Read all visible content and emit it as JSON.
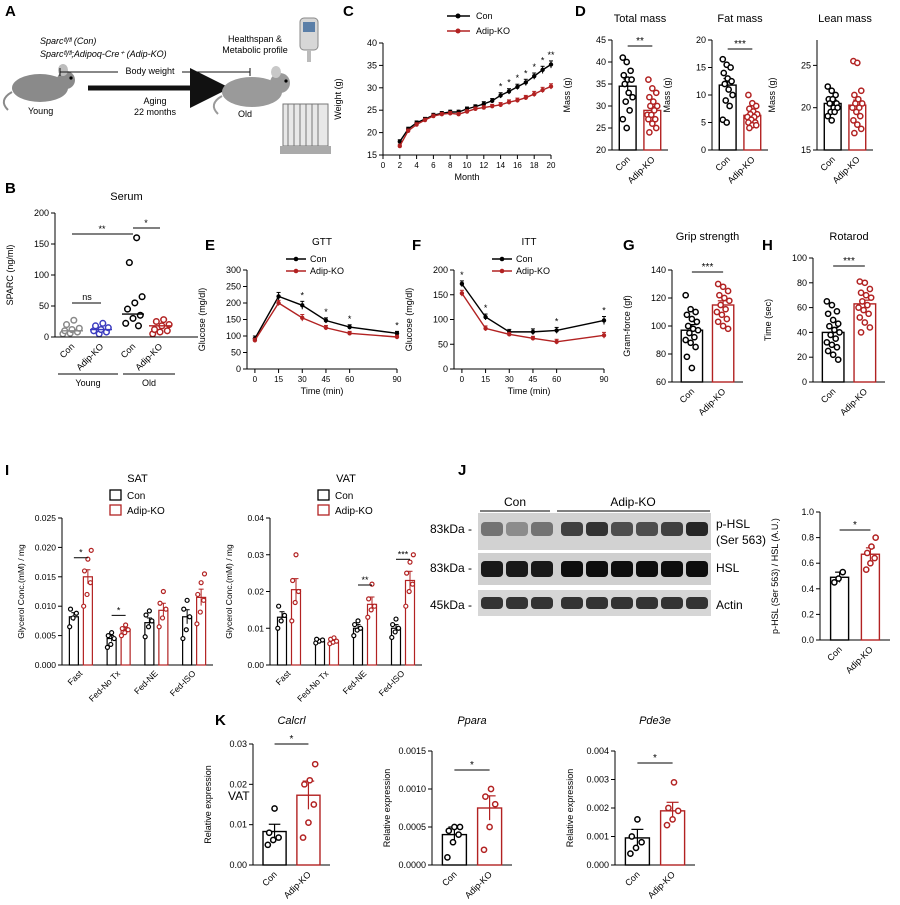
{
  "colors": {
    "con": "#000000",
    "ko": "#b22222",
    "ko_fill": "#c0392b"
  },
  "panel_letters": [
    "A",
    "B",
    "C",
    "D",
    "E",
    "F",
    "G",
    "H",
    "I",
    "J",
    "K"
  ],
  "schematic": {
    "legend_con": "Sparcᶠˡ/ᶠˡ (Con)",
    "legend_ko": "Sparcᶠˡ/ᶠˡ;Adipoq-Cre⁺ (Adip-KO)",
    "body_weight": "Body weight",
    "young": "Young",
    "aging": "Aging",
    "aging_months": "22 months",
    "old": "Old",
    "healthspan": "Healthspan &",
    "metabolic": "Metabolic profile"
  },
  "chart_data": [
    {
      "id": "C",
      "type": "line",
      "title": "",
      "xlabel": "Month",
      "ylabel": "Weight (g)",
      "xlim": [
        0,
        20
      ],
      "ylim": [
        15,
        40
      ],
      "xticks": [
        0,
        2,
        4,
        6,
        8,
        10,
        12,
        14,
        16,
        18,
        20
      ],
      "yticks": [
        15,
        20,
        25,
        30,
        35,
        40
      ],
      "x": [
        2,
        3,
        4,
        5,
        6,
        7,
        8,
        9,
        10,
        11,
        12,
        13,
        14,
        15,
        16,
        17,
        18,
        19,
        20
      ],
      "series": [
        {
          "name": "Con",
          "values": [
            18,
            20.8,
            22.2,
            23,
            23.9,
            24.3,
            24.6,
            24.6,
            25.3,
            25.8,
            26.4,
            27.1,
            28.3,
            29.2,
            30.2,
            31.2,
            32.6,
            34,
            35.2
          ],
          "errors": [
            0.4,
            0.4,
            0.4,
            0.4,
            0.4,
            0.4,
            0.4,
            0.4,
            0.4,
            0.4,
            0.5,
            0.5,
            0.6,
            0.6,
            0.6,
            0.7,
            0.7,
            0.8,
            0.8
          ]
        },
        {
          "name": "Adip-KO",
          "values": [
            17,
            20.4,
            21.8,
            22.8,
            23.7,
            24.1,
            24.3,
            24.1,
            24.7,
            25.3,
            25.6,
            25.9,
            26.2,
            26.8,
            27.2,
            27.8,
            28.6,
            29.5,
            30.3
          ],
          "errors": [
            0.4,
            0.4,
            0.4,
            0.4,
            0.4,
            0.4,
            0.4,
            0.4,
            0.4,
            0.4,
            0.4,
            0.4,
            0.5,
            0.5,
            0.5,
            0.5,
            0.6,
            0.6,
            0.6
          ]
        }
      ],
      "sig": [
        [
          "*",
          14
        ],
        [
          "*",
          15
        ],
        [
          "*",
          16
        ],
        [
          "*",
          17
        ],
        [
          "*",
          18
        ],
        [
          "*",
          19
        ],
        [
          "**",
          20
        ]
      ]
    },
    {
      "id": "D1",
      "type": "bar",
      "title": "Total mass",
      "ylabel": "Mass (g)",
      "ylim": [
        20,
        45
      ],
      "yticks": [
        20,
        25,
        30,
        35,
        40,
        45
      ],
      "categories": [
        "Con",
        "Adip-KO"
      ],
      "values": [
        34.5,
        29
      ],
      "errors": [
        1.6,
        0.9
      ],
      "points": [
        [
          41,
          40,
          38,
          37,
          36,
          36,
          35,
          33,
          32,
          31,
          29,
          27,
          25
        ],
        [
          36,
          34,
          33,
          32,
          31,
          30,
          30,
          29,
          28,
          28,
          27,
          27,
          26,
          25,
          24
        ]
      ],
      "sig": {
        "text": "**"
      }
    },
    {
      "id": "D2",
      "type": "bar",
      "title": "Fat mass",
      "ylabel": "Mass (g)",
      "ylim": [
        0,
        20
      ],
      "yticks": [
        0,
        5,
        10,
        15,
        20
      ],
      "categories": [
        "Con",
        "Adip-KO"
      ],
      "values": [
        11.8,
        6.3
      ],
      "errors": [
        1.2,
        0.5
      ],
      "points": [
        [
          16.5,
          15.5,
          15,
          14,
          13,
          12.5,
          12,
          11,
          10,
          9,
          8,
          5.5,
          5
        ],
        [
          10,
          8.5,
          8,
          7.5,
          7,
          6.5,
          6.5,
          6,
          6,
          5.5,
          5,
          5,
          4.5,
          4.5,
          4
        ]
      ],
      "sig": {
        "text": "***"
      }
    },
    {
      "id": "D3",
      "type": "bar",
      "title": "Lean mass",
      "ylabel": "Mass (g)",
      "ylim": [
        15,
        28
      ],
      "yticks": [
        15,
        20,
        25
      ],
      "categories": [
        "Con",
        "Adip-KO"
      ],
      "values": [
        20.5,
        20.3
      ],
      "errors": [
        0.4,
        0.6
      ],
      "points": [
        [
          22.5,
          22,
          21.5,
          21,
          21,
          20.5,
          20.5,
          20,
          20,
          19.5,
          19.5,
          19,
          18.5
        ],
        [
          25.5,
          25.3,
          22,
          21.5,
          21,
          20.5,
          20.5,
          20,
          20,
          19.5,
          19,
          18.5,
          18,
          17.5,
          17
        ]
      ]
    },
    {
      "id": "B",
      "type": "scatter",
      "title": "Serum",
      "ylabel": "SPARC (ng/ml)",
      "ylim": [
        0,
        200
      ],
      "yticks": [
        0,
        50,
        100,
        150,
        200
      ],
      "categories": [
        "Con",
        "Adip-KO",
        "Con",
        "Adip-KO"
      ],
      "group_labels": [
        "Young",
        "Old"
      ],
      "medians": [
        10,
        12,
        37,
        18
      ],
      "points": [
        [
          5,
          6,
          8,
          10,
          12,
          14,
          20,
          27
        ],
        [
          5,
          8,
          10,
          12,
          15,
          18,
          22
        ],
        [
          18,
          22,
          30,
          35,
          45,
          55,
          65,
          120,
          160
        ],
        [
          5,
          8,
          10,
          12,
          18,
          20,
          25,
          28
        ]
      ],
      "sig": [
        {
          "text": "ns"
        },
        {
          "text": "**"
        },
        {
          "text": "*"
        }
      ]
    },
    {
      "id": "E",
      "type": "line",
      "title": "GTT",
      "xlabel": "Time (min)",
      "ylabel": "Glucose (mg/dl)",
      "ylim": [
        0,
        300
      ],
      "yticks": [
        0,
        50,
        100,
        150,
        200,
        250,
        300
      ],
      "x": [
        0,
        15,
        30,
        45,
        60,
        90
      ],
      "series": [
        {
          "name": "Con",
          "values": [
            92,
            220,
            193,
            147,
            127,
            108
          ],
          "errors": [
            8,
            12,
            12,
            8,
            7,
            6
          ]
        },
        {
          "name": "Adip-KO",
          "values": [
            87,
            200,
            155,
            125,
            108,
            97
          ],
          "errors": [
            6,
            8,
            10,
            7,
            6,
            5
          ]
        }
      ],
      "sig": [
        [
          "*",
          30
        ],
        [
          "*",
          45
        ],
        [
          "*",
          60
        ],
        [
          "*",
          90
        ]
      ]
    },
    {
      "id": "F",
      "type": "line",
      "title": "ITT",
      "xlabel": "Time (min)",
      "ylabel": "Glucose (mg/dl)",
      "ylim": [
        0,
        200
      ],
      "yticks": [
        0,
        50,
        100,
        150,
        200
      ],
      "x": [
        0,
        15,
        30,
        45,
        60,
        90
      ],
      "series": [
        {
          "name": "Con",
          "values": [
            172,
            105,
            75,
            75,
            78,
            98
          ],
          "errors": [
            6,
            6,
            5,
            6,
            6,
            8
          ]
        },
        {
          "name": "Adip-KO",
          "values": [
            153,
            82,
            70,
            62,
            55,
            68
          ],
          "errors": [
            6,
            5,
            4,
            4,
            5,
            6
          ]
        }
      ],
      "sig": [
        [
          "*",
          0
        ],
        [
          "*",
          15
        ],
        [
          "*",
          60
        ],
        [
          "*",
          90
        ]
      ]
    },
    {
      "id": "G",
      "type": "bar",
      "title": "Grip strength",
      "ylabel": "Gram-force (gf)",
      "ylim": [
        60,
        140
      ],
      "yticks": [
        60,
        80,
        100,
        120,
        140
      ],
      "categories": [
        "Con",
        "Adip-KO"
      ],
      "values": [
        97,
        115
      ],
      "errors": [
        4,
        3
      ],
      "points": [
        [
          122,
          112,
          110,
          108,
          105,
          103,
          100,
          98,
          97,
          95,
          92,
          90,
          88,
          85,
          78,
          70
        ],
        [
          130,
          128,
          125,
          122,
          120,
          118,
          115,
          112,
          110,
          108,
          105,
          103,
          100,
          98
        ]
      ],
      "sig": {
        "text": "***"
      }
    },
    {
      "id": "H",
      "type": "bar",
      "title": "Rotarod",
      "ylabel": "Time (sec)",
      "ylim": [
        0,
        100
      ],
      "yticks": [
        0,
        20,
        40,
        60,
        80,
        100
      ],
      "categories": [
        "Con",
        "Adip-KO"
      ],
      "values": [
        40,
        63
      ],
      "errors": [
        4,
        3
      ],
      "points": [
        [
          65,
          62,
          57,
          55,
          50,
          47,
          45,
          42,
          40,
          38,
          35,
          32,
          30,
          28,
          25,
          22,
          18
        ],
        [
          81,
          80,
          75,
          72,
          70,
          68,
          65,
          62,
          60,
          58,
          55,
          52,
          48,
          44,
          40
        ]
      ],
      "sig": {
        "text": "***"
      }
    },
    {
      "id": "I1",
      "type": "bar",
      "title": "SAT",
      "ylabel": "Glycerol Conc.(mM) / mg",
      "ylim": [
        0,
        0.025
      ],
      "yticks": [
        0,
        0.005,
        0.01,
        0.015,
        0.02,
        0.025
      ],
      "ytick_labels": [
        "0.000",
        "0.005",
        "0.010",
        "0.015",
        "0.020",
        "0.025"
      ],
      "categories": [
        "Fast",
        "Fed-No Tx",
        "Fed-NE",
        "Fed-ISO"
      ],
      "series": [
        {
          "name": "Con",
          "values": [
            0.0082,
            0.0045,
            0.0072,
            0.0082
          ],
          "errors": [
            0.0007,
            0.0005,
            0.0008,
            0.0012
          ]
        },
        {
          "name": "Adip-KO",
          "values": [
            0.015,
            0.006,
            0.0093,
            0.0115
          ],
          "errors": [
            0.0012,
            0.0004,
            0.0012,
            0.0014
          ]
        }
      ],
      "points_con": [
        [
          0.0065,
          0.008,
          0.0088,
          0.0095
        ],
        [
          0.003,
          0.0035,
          0.0045,
          0.005,
          0.0055
        ],
        [
          0.0048,
          0.0065,
          0.0075,
          0.0085,
          0.0092
        ],
        [
          0.0045,
          0.006,
          0.0082,
          0.0095,
          0.011
        ]
      ],
      "points_ko": [
        [
          0.01,
          0.012,
          0.014,
          0.016,
          0.018,
          0.0195
        ],
        [
          0.005,
          0.0055,
          0.006,
          0.0062,
          0.0068
        ],
        [
          0.0065,
          0.008,
          0.0095,
          0.0105,
          0.0125
        ],
        [
          0.007,
          0.009,
          0.011,
          0.012,
          0.014,
          0.0155
        ]
      ],
      "sig": [
        {
          "text": "*"
        },
        {
          "text": "*"
        }
      ]
    },
    {
      "id": "I2",
      "type": "bar",
      "title": "VAT",
      "ylabel": "Glycerol Conc.(mM) / mg",
      "ylim": [
        0,
        0.04
      ],
      "yticks": [
        0,
        0.01,
        0.02,
        0.03,
        0.04
      ],
      "ytick_labels": [
        "0.00",
        "0.01",
        "0.02",
        "0.03",
        "0.04"
      ],
      "categories": [
        "Fast",
        "Fed-No Tx",
        "Fed-NE",
        "Fed-ISO"
      ],
      "series": [
        {
          "name": "Con",
          "values": [
            0.013,
            0.0065,
            0.01,
            0.01
          ],
          "errors": [
            0.0015,
            0.0005,
            0.001,
            0.001
          ]
        },
        {
          "name": "Adip-KO",
          "values": [
            0.0205,
            0.0065,
            0.0165,
            0.023
          ],
          "errors": [
            0.003,
            0.0005,
            0.002,
            0.0025
          ]
        }
      ],
      "points_con": [
        [
          0.01,
          0.012,
          0.0135,
          0.016
        ],
        [
          0.006,
          0.0065,
          0.0068,
          0.007
        ],
        [
          0.008,
          0.0095,
          0.01,
          0.011,
          0.012
        ],
        [
          0.0075,
          0.009,
          0.01,
          0.011,
          0.0125
        ]
      ],
      "points_ko": [
        [
          0.012,
          0.017,
          0.02,
          0.023,
          0.03
        ],
        [
          0.0058,
          0.0062,
          0.0065,
          0.007,
          0.0074
        ],
        [
          0.013,
          0.015,
          0.016,
          0.018,
          0.022
        ],
        [
          0.016,
          0.02,
          0.022,
          0.025,
          0.028,
          0.03
        ]
      ],
      "sig": [
        {
          "text": "**"
        },
        {
          "text": "***"
        }
      ]
    },
    {
      "id": "J",
      "type": "bar",
      "title": "",
      "ylabel": "p-HSL (Ser 563) / HSL (A.U.)",
      "ylim": [
        0,
        1.0
      ],
      "yticks": [
        0,
        0.2,
        0.4,
        0.6,
        0.8,
        1.0
      ],
      "ytick_labels": [
        "0.0",
        "0.2",
        "0.4",
        "0.6",
        "0.8",
        "1.0"
      ],
      "categories": [
        "Con",
        "Adip-KO"
      ],
      "values": [
        0.49,
        0.67
      ],
      "errors": [
        0.04,
        0.05
      ],
      "points": [
        [
          0.45,
          0.48,
          0.53
        ],
        [
          0.55,
          0.6,
          0.64,
          0.68,
          0.73,
          0.8
        ]
      ],
      "sig": {
        "text": "*"
      }
    },
    {
      "id": "K1",
      "type": "bar",
      "title": "Calcrl",
      "ylabel": "Relative expression",
      "ylim": [
        0,
        0.03
      ],
      "yticks": [
        0,
        0.01,
        0.02,
        0.03
      ],
      "ytick_labels": [
        "0.00",
        "0.01",
        "0.02",
        "0.03"
      ],
      "categories": [
        "Con",
        "Adip-KO"
      ],
      "values": [
        0.0083,
        0.0173
      ],
      "errors": [
        0.0018,
        0.0035
      ],
      "points": [
        [
          0.005,
          0.0062,
          0.0068,
          0.008,
          0.014
        ],
        [
          0.0068,
          0.0105,
          0.015,
          0.02,
          0.021,
          0.025
        ]
      ],
      "sig": {
        "text": "*"
      }
    },
    {
      "id": "K2",
      "type": "bar",
      "title": "Ppara",
      "ylabel": "Relative expression",
      "ylim": [
        0,
        0.0015
      ],
      "yticks": [
        0,
        0.0005,
        0.001,
        0.0015
      ],
      "ytick_labels": [
        "0.0000",
        "0.0005",
        "0.0010",
        "0.0015"
      ],
      "categories": [
        "Con",
        "Adip-KO"
      ],
      "values": [
        0.0004,
        0.00075
      ],
      "errors": [
        0.0001,
        0.00016
      ],
      "points": [
        [
          0.0001,
          0.0003,
          0.0004,
          0.00045,
          0.0005,
          0.0005
        ],
        [
          0.0002,
          0.0005,
          0.0008,
          0.0009,
          0.001
        ]
      ],
      "sig": {
        "text": "*"
      }
    },
    {
      "id": "K3",
      "type": "bar",
      "title": "Pde3e",
      "ylabel": "Relative expression",
      "ylim": [
        0,
        0.004
      ],
      "yticks": [
        0,
        0.001,
        0.002,
        0.003,
        0.004
      ],
      "ytick_labels": [
        "0.000",
        "0.001",
        "0.002",
        "0.003",
        "0.004"
      ],
      "categories": [
        "Con",
        "Adip-KO"
      ],
      "values": [
        0.00095,
        0.0019
      ],
      "errors": [
        0.0003,
        0.0003
      ],
      "points": [
        [
          0.0004,
          0.0006,
          0.0008,
          0.001,
          0.0016
        ],
        [
          0.0014,
          0.0016,
          0.0019,
          0.002,
          0.0029
        ]
      ],
      "sig": {
        "text": "*"
      }
    }
  ],
  "blot": {
    "groups": [
      "Con",
      "Adip-KO"
    ],
    "rows": [
      {
        "kda": "83kDa -",
        "label": "p-HSL",
        "label2": "(Ser 563)"
      },
      {
        "kda": "83kDa -",
        "label": "HSL",
        "label2": ""
      },
      {
        "kda": "45kDa -",
        "label": "Actin",
        "label2": ""
      }
    ]
  },
  "legend": {
    "con": "Con",
    "ko": "Adip-KO"
  },
  "k_row_label": "VAT"
}
